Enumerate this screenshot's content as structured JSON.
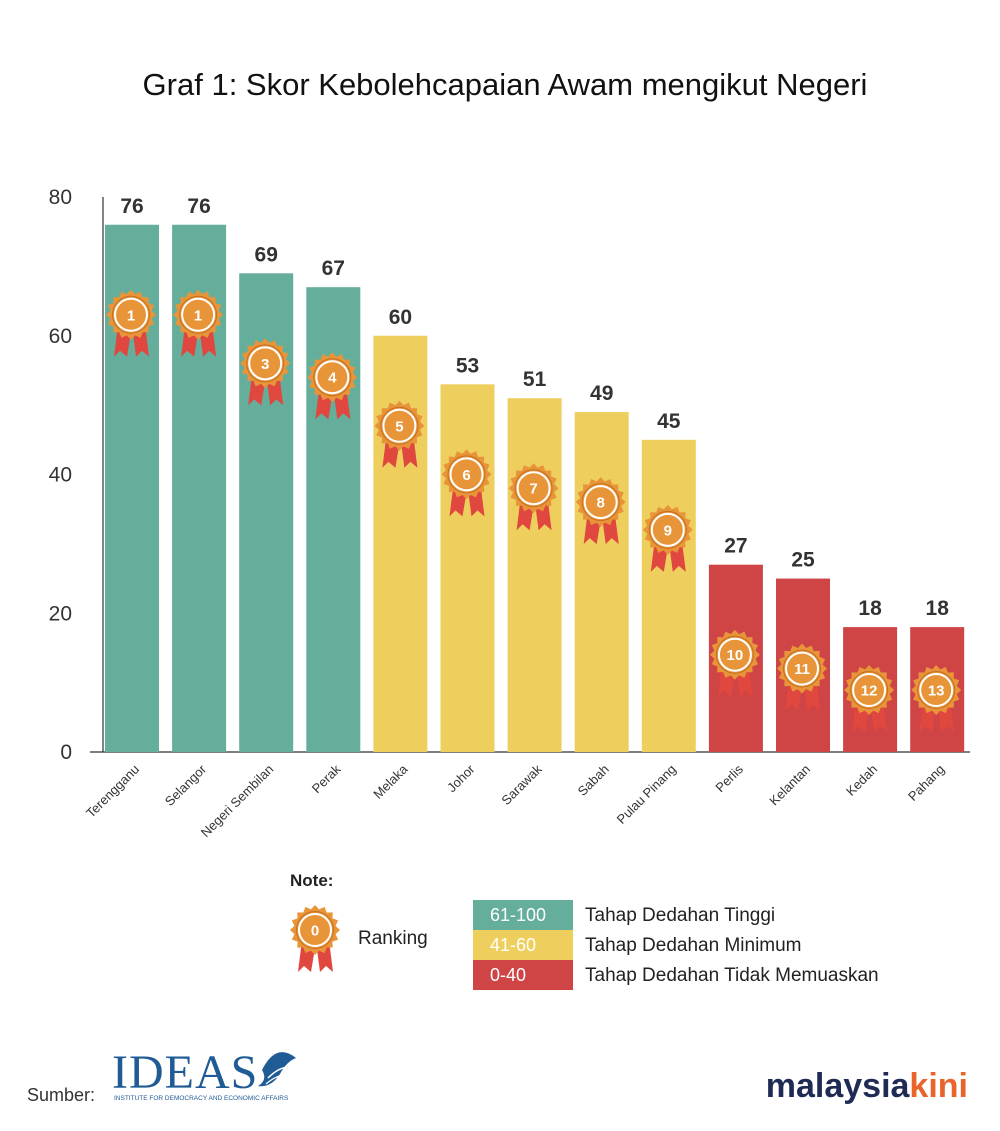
{
  "colors": {
    "tinggi": "#64ae9b",
    "minimum": "#eecf5e",
    "tidak": "#cf4444",
    "medal": "#e8953a",
    "medal_dark": "#c47022",
    "ribbon": "#e0473f",
    "axis": "#333333",
    "brand_dark": "#1f2a55",
    "brand_accent": "#e8642b",
    "ideas_blue": "#1f5b95"
  },
  "chart_data": {
    "type": "bar",
    "title": "Graf 1: Skor Kebolehcapaian Awam mengikut Negeri",
    "xlabel": "",
    "ylabel": "",
    "ylim": [
      0,
      80
    ],
    "yticks": [
      "0",
      "20",
      "40",
      "60",
      "80"
    ],
    "grid": false,
    "categories": [
      "Terengganu",
      "Selangor",
      "Negeri Sembilan",
      "Perak",
      "Melaka",
      "Johor",
      "Sarawak",
      "Sabah",
      "Pulau Pinang",
      "Perlis",
      "Kelantan",
      "Kedah",
      "Pahang"
    ],
    "values": [
      76,
      76,
      69,
      67,
      60,
      53,
      51,
      49,
      45,
      27,
      25,
      18,
      18
    ],
    "value_labels": [
      "76",
      "76",
      "69",
      "67",
      "60",
      "53",
      "51",
      "49",
      "45",
      "27",
      "25",
      "18",
      "18"
    ],
    "ranks": [
      "1",
      "1",
      "3",
      "4",
      "5",
      "6",
      "7",
      "8",
      "9",
      "10",
      "11",
      "12",
      "13"
    ],
    "tiers": [
      "tinggi",
      "tinggi",
      "tinggi",
      "tinggi",
      "minimum",
      "minimum",
      "minimum",
      "minimum",
      "minimum",
      "tidak",
      "tidak",
      "tidak",
      "tidak"
    ]
  },
  "note": {
    "title": "Note:",
    "medal_sample": "0",
    "ranking_label": "Ranking"
  },
  "legend": [
    {
      "range": "61-100",
      "label": "Tahap Dedahan Tinggi",
      "tier": "tinggi"
    },
    {
      "range": "41-60",
      "label": "Tahap Dedahan Minimum",
      "tier": "minimum"
    },
    {
      "range": "0-40",
      "label": "Tahap Dedahan Tidak Memuaskan",
      "tier": "tidak"
    }
  ],
  "source": {
    "label": "Sumber:",
    "logo_text": "IDEAS",
    "logo_subtitle": "INSTITUTE FOR DEMOCRACY AND ECONOMIC AFFAIRS"
  },
  "brand": {
    "part1": "malaysia",
    "part2": "kini"
  }
}
